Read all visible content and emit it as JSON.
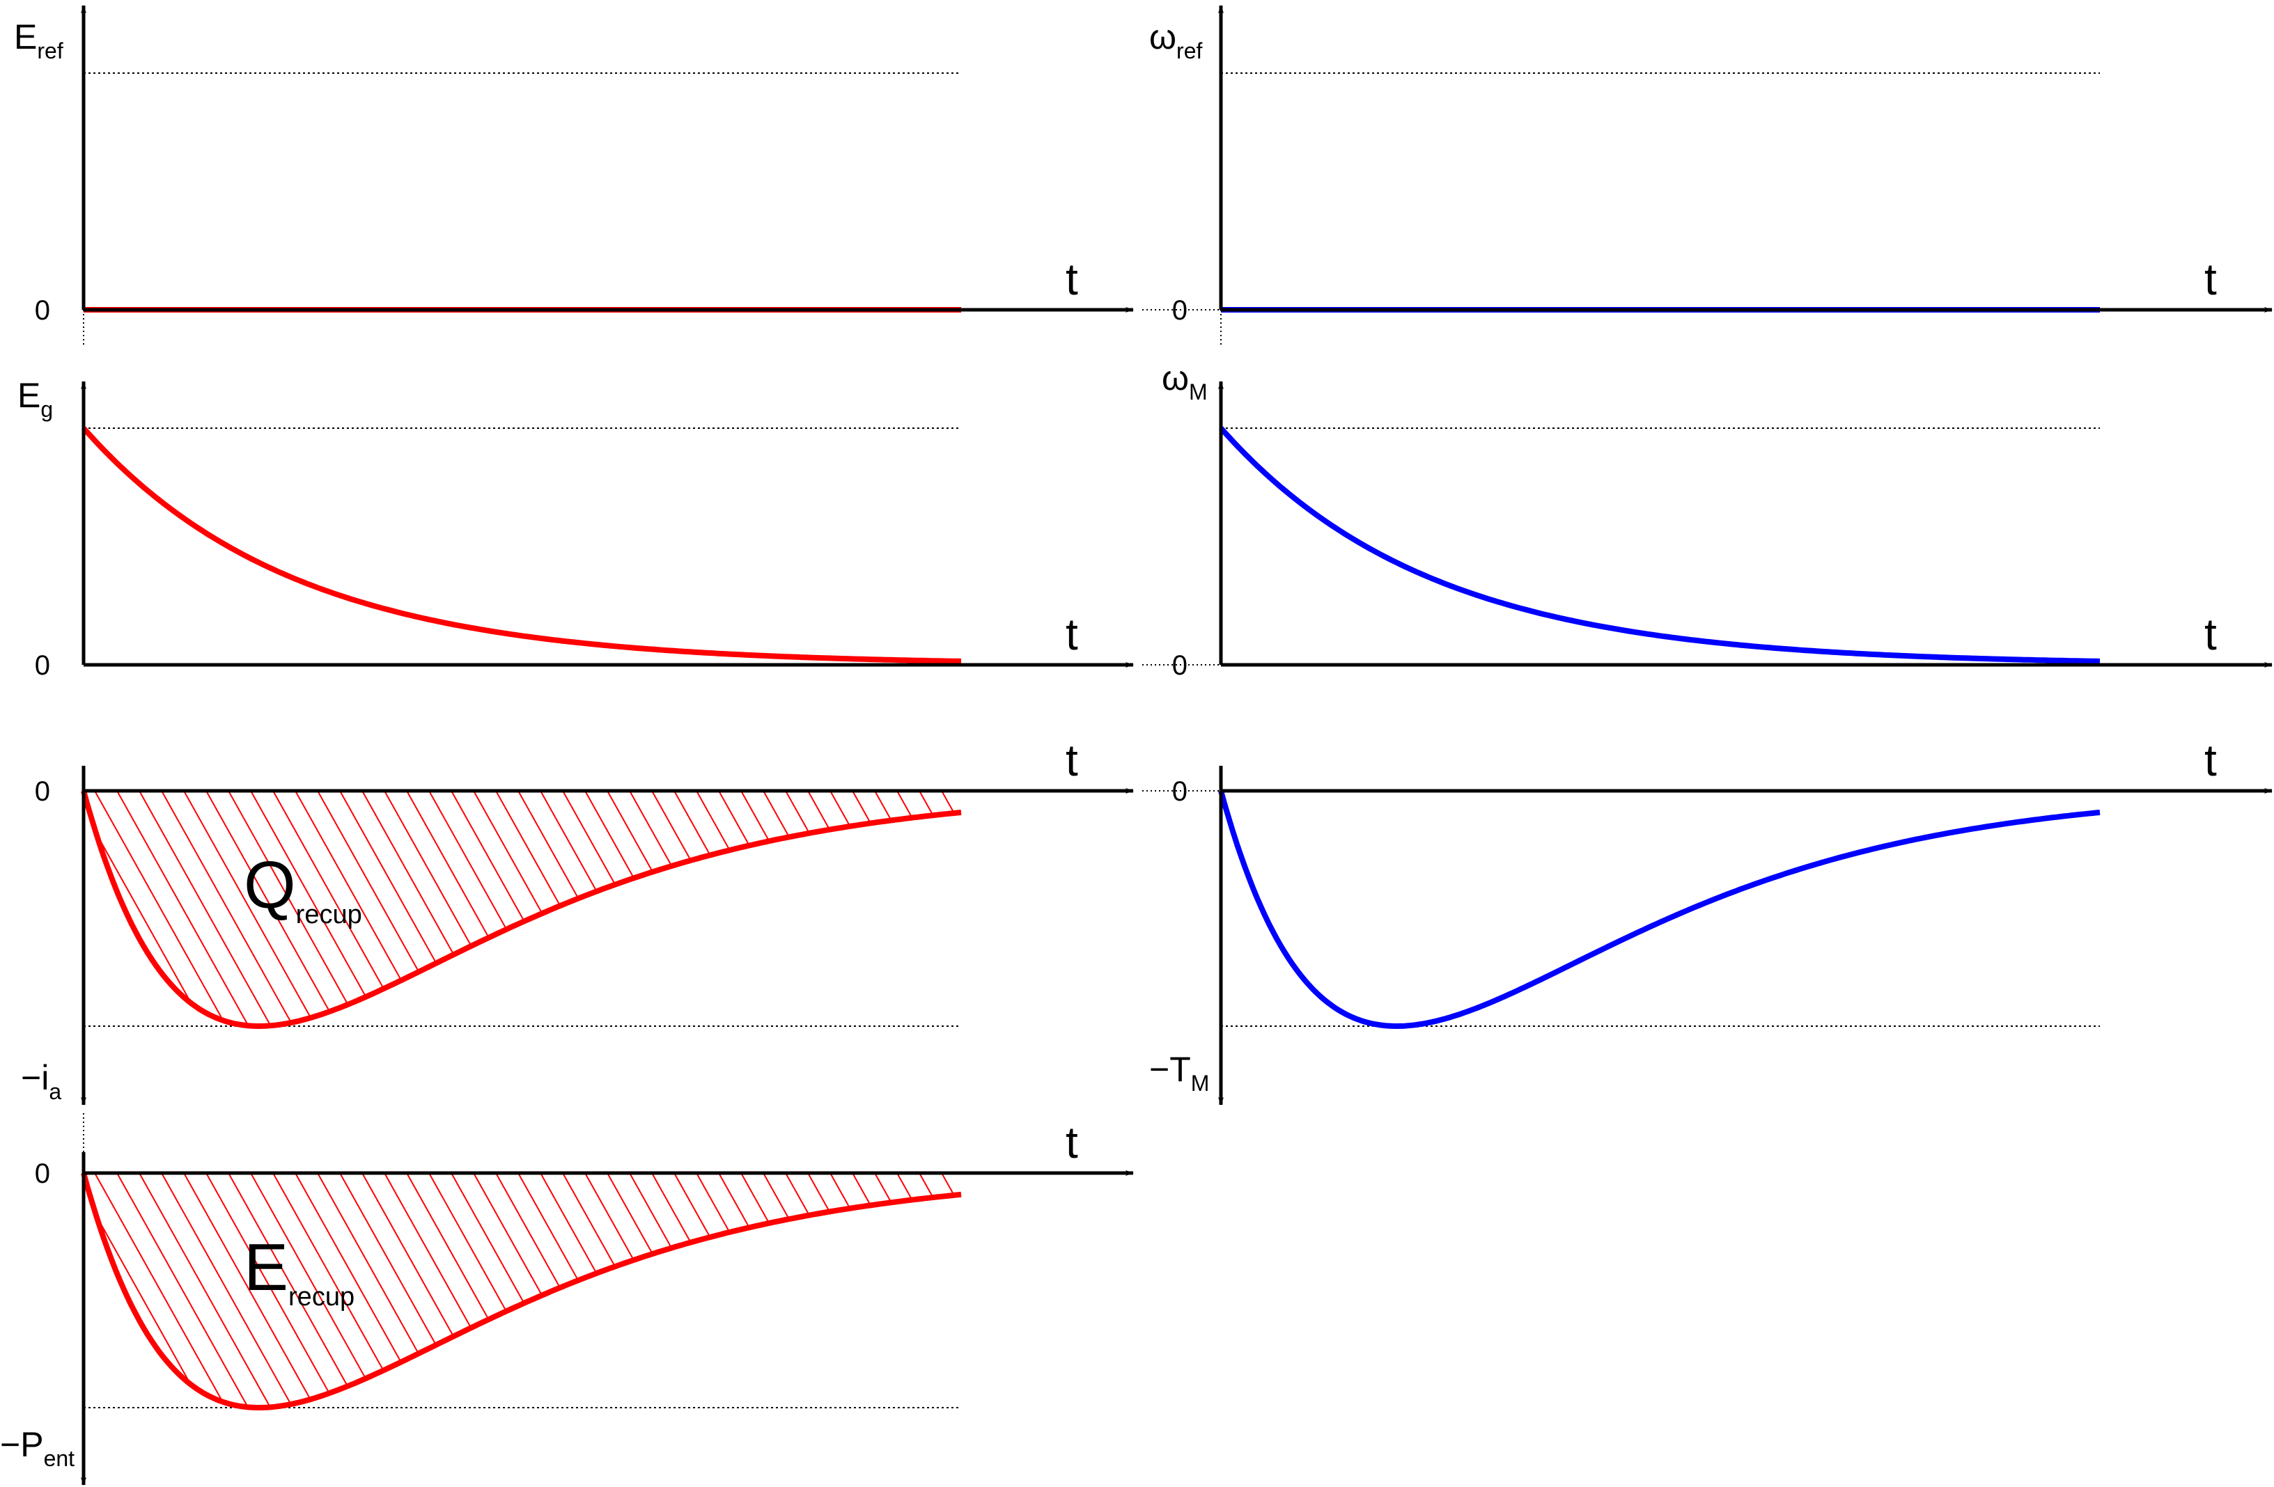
{
  "colors": {
    "energy_side": "#ff0000",
    "speed_side": "#0000ff",
    "axis": "#000000"
  },
  "chart_data": [
    {
      "id": "eref",
      "type": "line",
      "ylabel": "E",
      "ylabel_sub": "ref",
      "xlabel": "t",
      "zero_label": "0",
      "negative_label": "",
      "negative_sub": "",
      "color": "#ff0000",
      "direction": "up",
      "shape": "constant",
      "x": [
        0,
        1
      ],
      "y": [
        0,
        0
      ],
      "ref_level": 1.0,
      "ylim": [
        0,
        1.0
      ]
    },
    {
      "id": "wref",
      "type": "line",
      "ylabel": "ω",
      "ylabel_sub": "ref",
      "xlabel": "t",
      "zero_label": "0",
      "negative_label": "",
      "negative_sub": "",
      "color": "#0000ff",
      "direction": "up",
      "shape": "constant",
      "x": [
        0,
        1
      ],
      "y": [
        0,
        0
      ],
      "ref_level": 1.0,
      "ylim": [
        0,
        1.0
      ]
    },
    {
      "id": "eg",
      "type": "line",
      "ylabel": "E",
      "ylabel_sub": "g",
      "xlabel": "t",
      "zero_label": "0",
      "negative_label": "",
      "negative_sub": "",
      "color": "#ff0000",
      "direction": "up",
      "shape": "decay",
      "x": [
        0,
        0.1,
        0.2,
        0.3,
        0.4,
        0.5,
        0.6,
        0.7,
        0.8,
        0.9,
        1.0
      ],
      "y": [
        1.0,
        0.67,
        0.45,
        0.3,
        0.2,
        0.13,
        0.09,
        0.06,
        0.04,
        0.02,
        0.0
      ],
      "ref_level": 1.0,
      "ylim": [
        0,
        1.0
      ]
    },
    {
      "id": "wm",
      "type": "line",
      "ylabel": "ω",
      "ylabel_sub": "M",
      "xlabel": "t",
      "zero_label": "0",
      "negative_label": "",
      "negative_sub": "",
      "color": "#0000ff",
      "direction": "up",
      "shape": "decay",
      "x": [
        0,
        0.1,
        0.2,
        0.3,
        0.4,
        0.5,
        0.6,
        0.7,
        0.8,
        0.9,
        1.0
      ],
      "y": [
        1.0,
        0.67,
        0.45,
        0.3,
        0.2,
        0.13,
        0.09,
        0.06,
        0.04,
        0.02,
        0.0
      ],
      "ref_level": 1.0,
      "ylim": [
        0,
        1.0
      ]
    },
    {
      "id": "ia",
      "type": "area",
      "ylabel": "",
      "ylabel_sub": "",
      "xlabel": "t",
      "zero_label": "0",
      "negative_label": "−i",
      "negative_sub": "a",
      "area_label": "Q",
      "area_sub": "recup",
      "color": "#ff0000",
      "direction": "down",
      "shape": "dip",
      "x": [
        0,
        0.1,
        0.2,
        0.3,
        0.4,
        0.5,
        0.6,
        0.7,
        0.8,
        0.9,
        1.0
      ],
      "y": [
        0,
        -0.7,
        -1.0,
        -0.88,
        -0.62,
        -0.4,
        -0.24,
        -0.13,
        -0.06,
        -0.02,
        0.0
      ],
      "ref_level": -1.0,
      "ylim": [
        -1.0,
        0
      ]
    },
    {
      "id": "tm",
      "type": "line",
      "ylabel": "",
      "ylabel_sub": "",
      "xlabel": "t",
      "zero_label": "0",
      "negative_label": "−T",
      "negative_sub": "M",
      "color": "#0000ff",
      "direction": "down",
      "shape": "dip",
      "x": [
        0,
        0.1,
        0.2,
        0.3,
        0.4,
        0.5,
        0.6,
        0.7,
        0.8,
        0.9,
        1.0
      ],
      "y": [
        0,
        -0.7,
        -1.0,
        -0.88,
        -0.62,
        -0.4,
        -0.24,
        -0.13,
        -0.06,
        -0.02,
        0.0
      ],
      "ref_level": -1.0,
      "ylim": [
        -1.0,
        0
      ]
    },
    {
      "id": "pent",
      "type": "area",
      "ylabel": "",
      "ylabel_sub": "",
      "xlabel": "t",
      "zero_label": "0",
      "negative_label": "−P",
      "negative_sub": "ent",
      "area_label": "E",
      "area_sub": "recup",
      "color": "#ff0000",
      "direction": "down",
      "shape": "dip",
      "x": [
        0,
        0.1,
        0.2,
        0.3,
        0.4,
        0.5,
        0.6,
        0.7,
        0.8,
        0.9,
        1.0
      ],
      "y": [
        0,
        -0.7,
        -1.0,
        -0.88,
        -0.62,
        -0.4,
        -0.24,
        -0.13,
        -0.06,
        -0.02,
        0.0
      ],
      "ref_level": -1.0,
      "ylim": [
        -1.0,
        0
      ]
    }
  ]
}
